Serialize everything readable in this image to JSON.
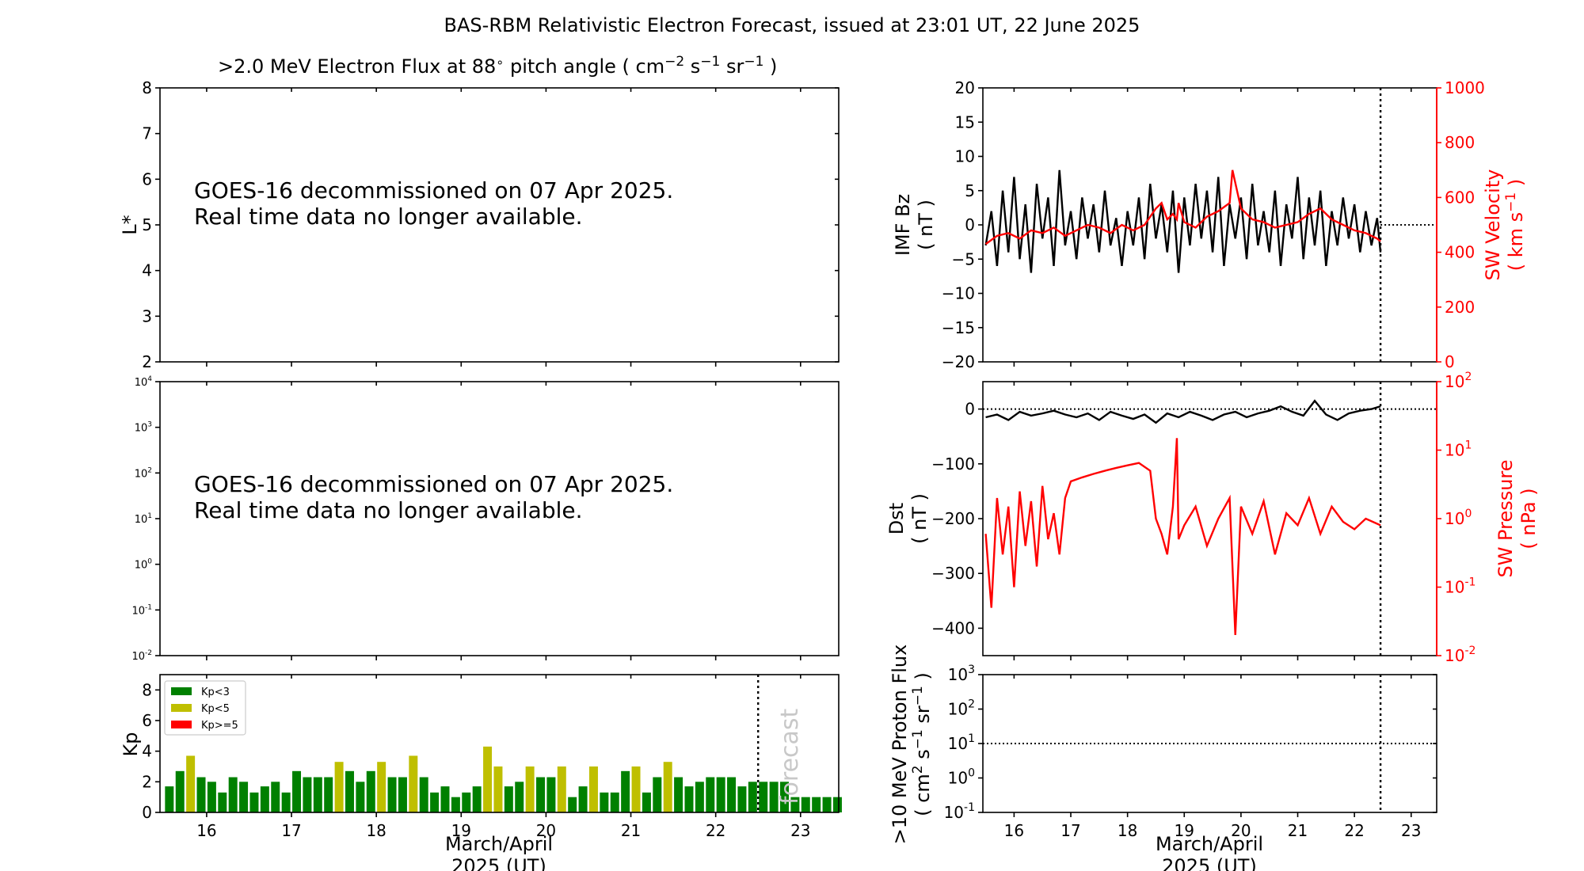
{
  "figure_title": "BAS-RBM Relativistic Electron Forecast, issued at 23:01 UT, 22 June 2025",
  "colors": {
    "black": "#000000",
    "red": "#ff0000",
    "kp_low": "#008000",
    "kp_mid": "#bfbf00",
    "kp_high": "#ff0000",
    "forecast_text": "#c8c8c8"
  },
  "chart_data": [
    {
      "id": "lstar-panel",
      "type": "heatmap",
      "title": ">2.0 MeV Electron Flux at 88$^\\circ$ pitch angle ( cm$^{-2}$ s$^{-1}$ sr$^{-1}$ )",
      "title_text": ">2.0 MeV Electron Flux at 88",
      "title_units": "pitch angle ( cm",
      "ylabel": "L*",
      "ylim": [
        2,
        8
      ],
      "yticks": [
        "2",
        "3",
        "4",
        "5",
        "6",
        "7",
        "8"
      ],
      "xlim": [
        15.45,
        23.45
      ],
      "message_line1": "GOES-16 decommissioned on 07 Apr 2025.",
      "message_line2": "Real time data no longer available."
    },
    {
      "id": "flux-panel",
      "type": "heatmap",
      "yscale": "log",
      "ylim": [
        0.01,
        10000
      ],
      "yticks": [
        "10-2",
        "10-1",
        "100",
        "101",
        "102",
        "103",
        "104"
      ],
      "message_line1": "GOES-16 decommissioned on 07 Apr 2025.",
      "message_line2": "Real time data no longer available."
    },
    {
      "id": "kp-panel",
      "type": "bar",
      "ylabel": "Kp",
      "ylim": [
        0,
        9
      ],
      "yticks": [
        "0",
        "2",
        "4",
        "6",
        "8"
      ],
      "xlim": [
        15.45,
        23.45
      ],
      "xticks": [
        "16",
        "17",
        "18",
        "19",
        "20",
        "21",
        "22",
        "23"
      ],
      "xlabel_line1": "March/April",
      "xlabel_line2": "2025 (UT)",
      "forecast_start": 22.5,
      "forecast_label": "forecast",
      "legend": [
        {
          "label": "Kp<3",
          "color": "#008000"
        },
        {
          "label": "Kp<5",
          "color": "#bfbf00"
        },
        {
          "label": "Kp>=5",
          "color": "#ff0000"
        }
      ],
      "start": 15.5,
      "interval_days": 0.125,
      "values": [
        1.7,
        2.7,
        3.7,
        2.3,
        2.0,
        1.3,
        2.3,
        2.0,
        1.3,
        1.7,
        2.0,
        1.3,
        2.7,
        2.3,
        2.3,
        2.3,
        3.3,
        2.7,
        2.0,
        2.7,
        3.3,
        2.3,
        2.3,
        3.7,
        2.3,
        1.3,
        1.7,
        1.0,
        1.3,
        1.7,
        4.3,
        3.0,
        1.7,
        2.0,
        3.0,
        2.3,
        2.3,
        3.0,
        1.0,
        1.7,
        3.0,
        1.3,
        1.3,
        2.7,
        3.0,
        1.3,
        2.3,
        3.3,
        2.3,
        1.7,
        2.0,
        2.3,
        2.3,
        2.3,
        1.7,
        2.0,
        2.0,
        2.0,
        2.0,
        1.0,
        1.0,
        1.0,
        1.0,
        1.0
      ]
    },
    {
      "id": "imf-panel",
      "type": "line",
      "ylabel_line1": "IMF Bz",
      "ylabel_line2": "( nT )",
      "ylim": [
        -20,
        20
      ],
      "yticks": [
        "−20",
        "−15",
        "−10",
        "−5",
        "0",
        "5",
        "10",
        "15",
        "20"
      ],
      "y2label_line1": "SW Velocity",
      "y2label_line2": "( km s",
      "y2lim": [
        0,
        1000
      ],
      "y2ticks": [
        "0",
        "200",
        "400",
        "600",
        "800",
        "1000"
      ],
      "xlim": [
        15.45,
        23.45
      ],
      "now_marker": 22.46,
      "series": [
        {
          "color": "#000000",
          "x": [
            15.5,
            15.6,
            15.7,
            15.8,
            15.9,
            16.0,
            16.1,
            16.2,
            16.3,
            16.4,
            16.5,
            16.6,
            16.7,
            16.8,
            16.9,
            17.0,
            17.1,
            17.2,
            17.3,
            17.4,
            17.5,
            17.6,
            17.7,
            17.8,
            17.9,
            18.0,
            18.1,
            18.2,
            18.3,
            18.4,
            18.5,
            18.6,
            18.7,
            18.8,
            18.9,
            19.0,
            19.1,
            19.2,
            19.3,
            19.4,
            19.5,
            19.6,
            19.7,
            19.8,
            19.9,
            20.0,
            20.1,
            20.2,
            20.3,
            20.4,
            20.5,
            20.6,
            20.7,
            20.8,
            20.9,
            21.0,
            21.1,
            21.2,
            21.3,
            21.4,
            21.5,
            21.6,
            21.7,
            21.8,
            21.9,
            22.0,
            22.1,
            22.2,
            22.3,
            22.4,
            22.46
          ],
          "y": [
            -3,
            2,
            -6,
            5,
            -4,
            7,
            -5,
            3,
            -7,
            6,
            -2,
            4,
            -6,
            8,
            -3,
            2,
            -5,
            4,
            -2,
            3,
            -4,
            5,
            -3,
            1,
            -6,
            2,
            -3,
            4,
            -5,
            6,
            -2,
            3,
            -4,
            5,
            -7,
            4,
            -3,
            6,
            -2,
            5,
            -4,
            7,
            -6,
            3,
            -2,
            4,
            -5,
            6,
            -3,
            2,
            -4,
            5,
            -6,
            3,
            -2,
            7,
            -5,
            4,
            -3,
            5,
            -6,
            2,
            -3,
            4,
            -2,
            3,
            -4,
            2,
            -3,
            1,
            -4
          ]
        },
        {
          "color": "#ff0000",
          "x": [
            15.5,
            15.7,
            15.9,
            16.1,
            16.3,
            16.5,
            16.7,
            16.9,
            17.1,
            17.3,
            17.5,
            17.7,
            17.9,
            18.1,
            18.3,
            18.5,
            18.6,
            18.7,
            18.8,
            18.87,
            18.9,
            19.0,
            19.2,
            19.4,
            19.6,
            19.8,
            19.85,
            20.0,
            20.2,
            20.4,
            20.6,
            20.8,
            21.0,
            21.2,
            21.4,
            21.6,
            21.8,
            22.0,
            22.2,
            22.4,
            22.46
          ],
          "y": [
            430,
            460,
            470,
            450,
            480,
            470,
            490,
            460,
            480,
            500,
            490,
            470,
            500,
            480,
            500,
            560,
            580,
            520,
            540,
            520,
            580,
            510,
            490,
            530,
            550,
            580,
            700,
            560,
            520,
            510,
            490,
            500,
            510,
            540,
            560,
            520,
            500,
            480,
            470,
            450,
            440
          ]
        }
      ]
    },
    {
      "id": "dst-panel",
      "type": "line",
      "ylabel_line1": "Dst",
      "ylabel_line2": "( nT )",
      "ylim": [
        -450,
        50
      ],
      "yticks": [
        "−400",
        "−300",
        "−200",
        "−100",
        "0"
      ],
      "y2label_line1": "SW Pressure",
      "y2label_line2": "( nPa )",
      "y2scale": "log",
      "y2lim": [
        0.01,
        100
      ],
      "y2ticks": [
        "10-2",
        "10-1",
        "100",
        "101",
        "102"
      ],
      "xlim": [
        15.45,
        23.45
      ],
      "now_marker": 22.46,
      "series": [
        {
          "color": "#000000",
          "x": [
            15.5,
            15.7,
            15.9,
            16.1,
            16.3,
            16.5,
            16.7,
            16.9,
            17.1,
            17.3,
            17.5,
            17.7,
            17.9,
            18.1,
            18.3,
            18.5,
            18.7,
            18.9,
            19.1,
            19.3,
            19.5,
            19.7,
            19.9,
            20.1,
            20.3,
            20.5,
            20.7,
            20.9,
            21.1,
            21.3,
            21.5,
            21.7,
            21.9,
            22.1,
            22.3,
            22.46
          ],
          "y": [
            -15,
            -10,
            -20,
            -5,
            -12,
            -8,
            -3,
            -10,
            -15,
            -8,
            -20,
            -5,
            -12,
            -18,
            -10,
            -25,
            -8,
            -15,
            -5,
            -12,
            -20,
            -10,
            -5,
            -15,
            -8,
            -3,
            5,
            -5,
            -12,
            15,
            -10,
            -20,
            -8,
            -3,
            0,
            5
          ]
        },
        {
          "color": "#ff0000",
          "x": [
            15.5,
            15.6,
            15.7,
            15.8,
            15.9,
            16.0,
            16.1,
            16.2,
            16.3,
            16.4,
            16.5,
            16.6,
            16.7,
            16.8,
            16.9,
            17.0,
            17.2,
            17.4,
            17.6,
            17.8,
            18.0,
            18.2,
            18.4,
            18.5,
            18.6,
            18.7,
            18.8,
            18.87,
            18.9,
            19.0,
            19.2,
            19.4,
            19.6,
            19.8,
            19.9,
            20.0,
            20.2,
            20.4,
            20.6,
            20.8,
            21.0,
            21.2,
            21.4,
            21.6,
            21.8,
            22.0,
            22.2,
            22.46
          ],
          "y": [
            0.6,
            0.05,
            2.0,
            0.3,
            1.5,
            0.1,
            2.5,
            0.4,
            1.8,
            0.2,
            3.0,
            0.5,
            1.2,
            0.3,
            2.0,
            3.5,
            4.0,
            4.5,
            5.0,
            5.5,
            6.0,
            6.5,
            5.0,
            1.0,
            0.6,
            0.3,
            1.5,
            15,
            0.5,
            0.8,
            1.5,
            0.4,
            1.0,
            2.0,
            0.02,
            1.5,
            0.6,
            1.8,
            0.3,
            1.2,
            0.8,
            2.0,
            0.6,
            1.5,
            0.9,
            0.7,
            1.0,
            0.8
          ]
        }
      ]
    },
    {
      "id": "proton-panel",
      "type": "line",
      "ylabel_line1": ">10 MeV Proton Flux",
      "ylabel_line2": "( cm",
      "yscale": "log",
      "ylim": [
        0.1,
        1000
      ],
      "yticks": [
        "10-1",
        "100",
        "101",
        "102",
        "103"
      ],
      "xlim": [
        15.45,
        23.45
      ],
      "xticks": [
        "16",
        "17",
        "18",
        "19",
        "20",
        "21",
        "22",
        "23"
      ],
      "xlabel_line1": "March/April",
      "xlabel_line2": "2025 (UT)",
      "threshold": 10,
      "now_marker": 22.46
    }
  ]
}
